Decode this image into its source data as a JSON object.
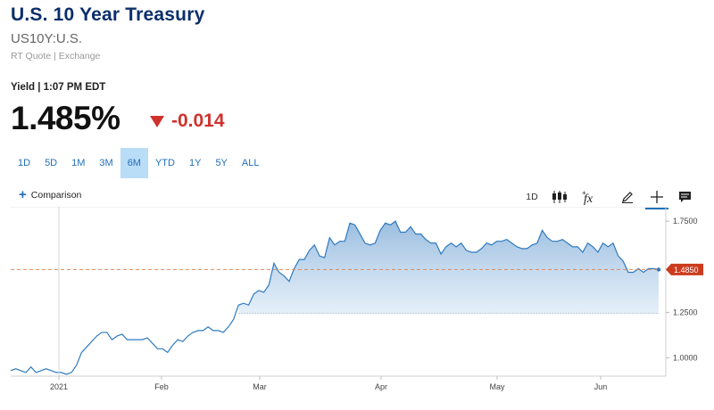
{
  "header": {
    "title": "U.S. 10 Year Treasury",
    "symbol": "US10Y:U.S.",
    "meta": "RT Quote | Exchange",
    "yield_time": "Yield | 1:07 PM EDT",
    "price": "1.485%",
    "change": "-0.014",
    "change_color": "#d0312d"
  },
  "ranges": [
    "1D",
    "5D",
    "1M",
    "3M",
    "6M",
    "YTD",
    "1Y",
    "5Y",
    "ALL"
  ],
  "active_range": "6M",
  "toolbar": {
    "comparison_label": "Comparison",
    "interval_label": "1D",
    "icons": [
      "candlestick-icon",
      "function-icon",
      "pencil-icon",
      "crosshair-icon",
      "notes-icon"
    ]
  },
  "chart_data": {
    "type": "area",
    "x_labels": [
      "2021",
      "Feb",
      "Mar",
      "Apr",
      "May",
      "Jun"
    ],
    "y_ticks": [
      "1.7500",
      "1.2500",
      "1.0000"
    ],
    "ylim": [
      0.9,
      1.8
    ],
    "current_value_label": "1.4850",
    "reference_line_value": 1.485,
    "baseline_value": 1.245,
    "series": [
      {
        "values": [
          0.93,
          0.94,
          0.93,
          0.92,
          0.95,
          0.92,
          0.93,
          0.94,
          0.93,
          0.92,
          0.92,
          0.91,
          0.92,
          0.96,
          1.03,
          1.06,
          1.09,
          1.12,
          1.14,
          1.14,
          1.1,
          1.12,
          1.13,
          1.1,
          1.1,
          1.1,
          1.1,
          1.11,
          1.08,
          1.05,
          1.05,
          1.03,
          1.07,
          1.1,
          1.09,
          1.12,
          1.14,
          1.15,
          1.15,
          1.17,
          1.15,
          1.15,
          1.14,
          1.17,
          1.21,
          1.29,
          1.3,
          1.29,
          1.35,
          1.37,
          1.36,
          1.4,
          1.52,
          1.47,
          1.45,
          1.42,
          1.49,
          1.54,
          1.54,
          1.59,
          1.62,
          1.56,
          1.55,
          1.66,
          1.62,
          1.64,
          1.64,
          1.74,
          1.73,
          1.68,
          1.63,
          1.62,
          1.63,
          1.7,
          1.74,
          1.73,
          1.75,
          1.69,
          1.69,
          1.72,
          1.68,
          1.68,
          1.65,
          1.63,
          1.63,
          1.57,
          1.61,
          1.63,
          1.61,
          1.63,
          1.59,
          1.58,
          1.58,
          1.6,
          1.63,
          1.62,
          1.64,
          1.64,
          1.65,
          1.63,
          1.61,
          1.6,
          1.6,
          1.62,
          1.63,
          1.7,
          1.66,
          1.64,
          1.64,
          1.65,
          1.63,
          1.61,
          1.61,
          1.58,
          1.63,
          1.61,
          1.58,
          1.63,
          1.61,
          1.63,
          1.56,
          1.53,
          1.47,
          1.47,
          1.49,
          1.47,
          1.49,
          1.49,
          1.485
        ]
      }
    ]
  }
}
